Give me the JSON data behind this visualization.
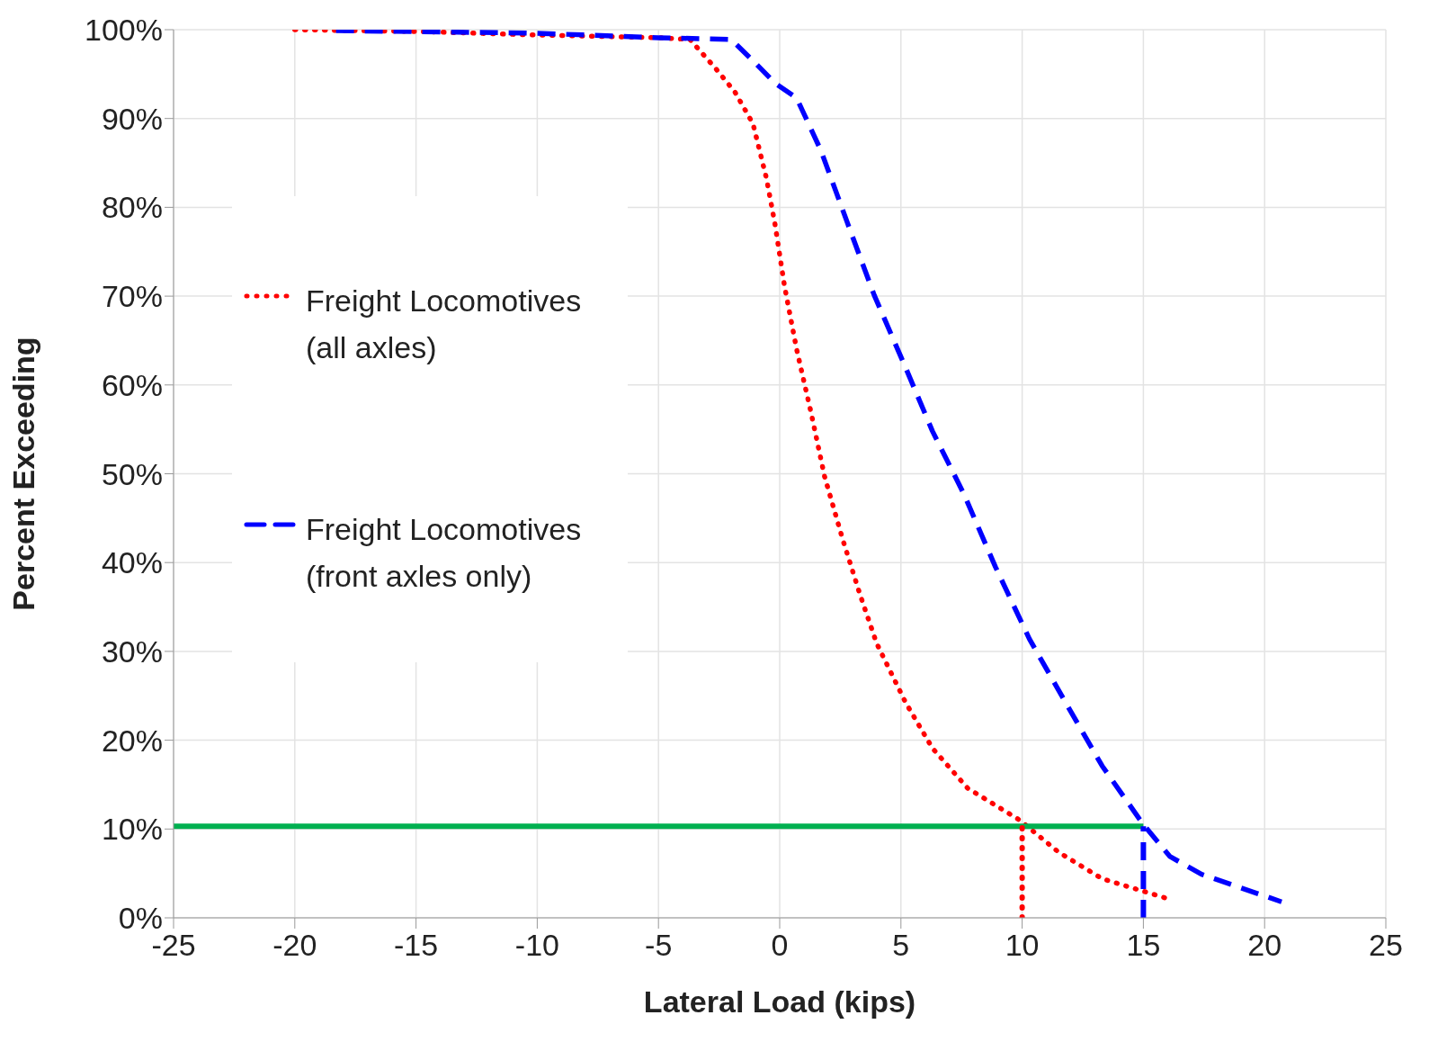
{
  "chart_data": {
    "type": "line",
    "xlabel": "Lateral Load (kips)",
    "ylabel": "Percent Exceeding",
    "xlim": [
      -25,
      25
    ],
    "xticks": [
      -25,
      -20,
      -15,
      -10,
      -5,
      0,
      5,
      10,
      15,
      20,
      25
    ],
    "ylim": [
      0,
      100
    ],
    "yticks": [
      {
        "value": 0,
        "label": "0%"
      },
      {
        "value": 10,
        "label": "10%"
      },
      {
        "value": 20,
        "label": "20%"
      },
      {
        "value": 30,
        "label": "30%"
      },
      {
        "value": 40,
        "label": "40%"
      },
      {
        "value": 50,
        "label": "50%"
      },
      {
        "value": 60,
        "label": "60%"
      },
      {
        "value": 70,
        "label": "70%"
      },
      {
        "value": 80,
        "label": "80%"
      },
      {
        "value": 90,
        "label": "90%"
      },
      {
        "value": 100,
        "label": "100%"
      }
    ],
    "grid": true,
    "legend": "left",
    "marker": "none",
    "series": [
      {
        "name": "Freight Locomotives (all axles)",
        "color": "#ff0000",
        "line_style": "dotted",
        "x": [
          -20,
          -14.9,
          -10,
          -5,
          -3.7,
          -2.6,
          -1.85,
          -1.1,
          -0.55,
          -0.2,
          0.2,
          0.7,
          1.3,
          1.85,
          2.6,
          3.3,
          4,
          5.2,
          6.3,
          7.75,
          9.9,
          11.5,
          13.3,
          16.2
        ],
        "values": [
          100,
          99.8,
          99.4,
          99.1,
          98.9,
          95.5,
          93,
          89.4,
          83.3,
          78.2,
          71.1,
          64,
          56.8,
          49.7,
          42.6,
          36.5,
          30.9,
          24.2,
          19.1,
          14.6,
          11,
          7.4,
          4.4,
          2
        ]
      },
      {
        "name": "Freight Locomotives (front axles only)",
        "color": "#0000ff",
        "line_style": "dashed",
        "x": [
          -18.3,
          -10,
          -5,
          -2,
          -1.1,
          -0.2,
          0.7,
          1.7,
          2.8,
          3.9,
          5.2,
          6.3,
          7.6,
          8.9,
          10.3,
          11.8,
          13.3,
          15,
          16.1,
          17.4,
          19,
          20.7
        ],
        "values": [
          99.9,
          99.6,
          99.1,
          98.9,
          96.5,
          94,
          92.3,
          86.4,
          78.2,
          70.1,
          61.9,
          54.8,
          47.7,
          39.5,
          31.4,
          24.2,
          17.1,
          10.5,
          6.9,
          4.9,
          3.4,
          1.8
        ]
      },
      {
        "color": "#00b050",
        "line_style": "solid",
        "x": [
          -25,
          15
        ],
        "values": [
          10.3,
          10.3
        ]
      },
      {
        "color": "#ff0000",
        "line_style": "dotted",
        "x": [
          10,
          10
        ],
        "values": [
          0,
          11
        ]
      },
      {
        "color": "#0000ff",
        "line_style": "dashed",
        "x": [
          15,
          15
        ],
        "values": [
          0,
          10.3
        ]
      }
    ]
  }
}
